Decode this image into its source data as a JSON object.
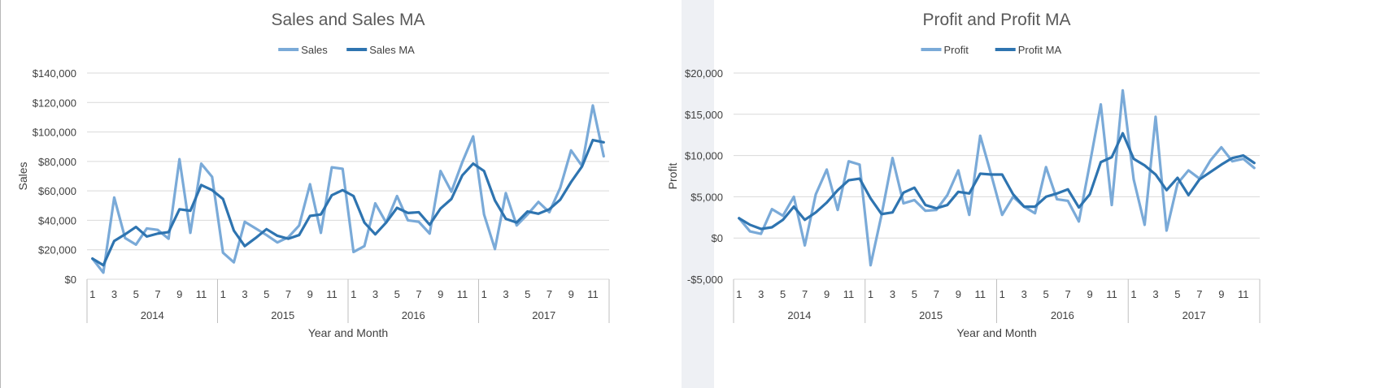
{
  "colors": {
    "raw": "#7aaad8",
    "ma": "#2e74b0"
  },
  "chart_data": [
    {
      "type": "line",
      "title": "Sales and Sales MA",
      "xlabel": "Year and Month",
      "ylabel": "Sales",
      "ylim": [
        0,
        140000
      ],
      "yticks": [
        0,
        20000,
        40000,
        60000,
        80000,
        100000,
        120000,
        140000
      ],
      "ytick_labels": [
        "$0",
        "$20,000",
        "$40,000",
        "$60,000",
        "$80,000",
        "$100,000",
        "$120,000",
        "$140,000"
      ],
      "years": [
        "2014",
        "2015",
        "2016",
        "2017"
      ],
      "month_tick_labels": [
        "1",
        "3",
        "5",
        "7",
        "9",
        "11"
      ],
      "legend_position": "top",
      "grid": true,
      "series": [
        {
          "name": "Sales",
          "role": "raw",
          "values": [
            14000,
            4500,
            55500,
            28000,
            23500,
            34500,
            33500,
            27500,
            81500,
            31500,
            78500,
            69500,
            18000,
            11500,
            39000,
            34500,
            30000,
            25000,
            28500,
            36500,
            64500,
            31500,
            76000,
            75000,
            18500,
            22500,
            51500,
            38500,
            56500,
            40000,
            39000,
            31000,
            73500,
            59500,
            79500,
            97000,
            44000,
            20500,
            58500,
            36500,
            44000,
            52500,
            45500,
            62000,
            87500,
            77000,
            118000,
            83500
          ]
        },
        {
          "name": "Sales MA",
          "role": "ma",
          "values": [
            14000,
            9500,
            26000,
            30500,
            35500,
            29000,
            31000,
            32000,
            47500,
            46500,
            64000,
            60500,
            54500,
            33000,
            22500,
            28000,
            34000,
            29500,
            27500,
            30000,
            43000,
            44000,
            57000,
            60500,
            56500,
            38500,
            30500,
            38500,
            48500,
            45000,
            45500,
            37000,
            48000,
            54500,
            70500,
            78500,
            73500,
            53500,
            41000,
            38500,
            46000,
            44500,
            47500,
            54000,
            66000,
            76500,
            94500,
            93000
          ]
        }
      ]
    },
    {
      "type": "line",
      "title": "Profit and Profit MA",
      "xlabel": "Year and Month",
      "ylabel": "Profit",
      "ylim": [
        -5000,
        20000
      ],
      "yticks": [
        -5000,
        0,
        5000,
        10000,
        15000,
        20000
      ],
      "ytick_labels": [
        "-$5,000",
        "$0",
        "$5,000",
        "$10,000",
        "$15,000",
        "$20,000"
      ],
      "years": [
        "2014",
        "2015",
        "2016",
        "2017"
      ],
      "month_tick_labels": [
        "1",
        "3",
        "5",
        "7",
        "9",
        "11"
      ],
      "legend_position": "top",
      "grid": true,
      "series": [
        {
          "name": "Profit",
          "role": "raw",
          "values": [
            2400,
            800,
            500,
            3500,
            2700,
            5000,
            -900,
            5300,
            8300,
            3400,
            9300,
            8900,
            -3300,
            2800,
            9700,
            4200,
            4600,
            3300,
            3400,
            5200,
            8200,
            2800,
            12400,
            7700,
            2800,
            5000,
            3800,
            3000,
            8600,
            4700,
            4500,
            2000,
            9000,
            16200,
            4000,
            17900,
            7100,
            1600,
            14700,
            900,
            6600,
            8200,
            7200,
            9400,
            11000,
            9300,
            9600,
            8500
          ]
        },
        {
          "name": "Profit MA",
          "role": "ma",
          "values": [
            2400,
            1600,
            1100,
            1300,
            2200,
            3800,
            2200,
            3100,
            4300,
            5800,
            7000,
            7200,
            4800,
            2900,
            3100,
            5500,
            6100,
            4000,
            3600,
            4000,
            5600,
            5400,
            7800,
            7700,
            7700,
            5300,
            3800,
            3800,
            5000,
            5400,
            5900,
            3700,
            5300,
            9200,
            9800,
            12700,
            9600,
            8800,
            7700,
            5800,
            7300,
            5200,
            7100,
            8000,
            8900,
            9700,
            10000,
            9100
          ]
        }
      ]
    }
  ]
}
